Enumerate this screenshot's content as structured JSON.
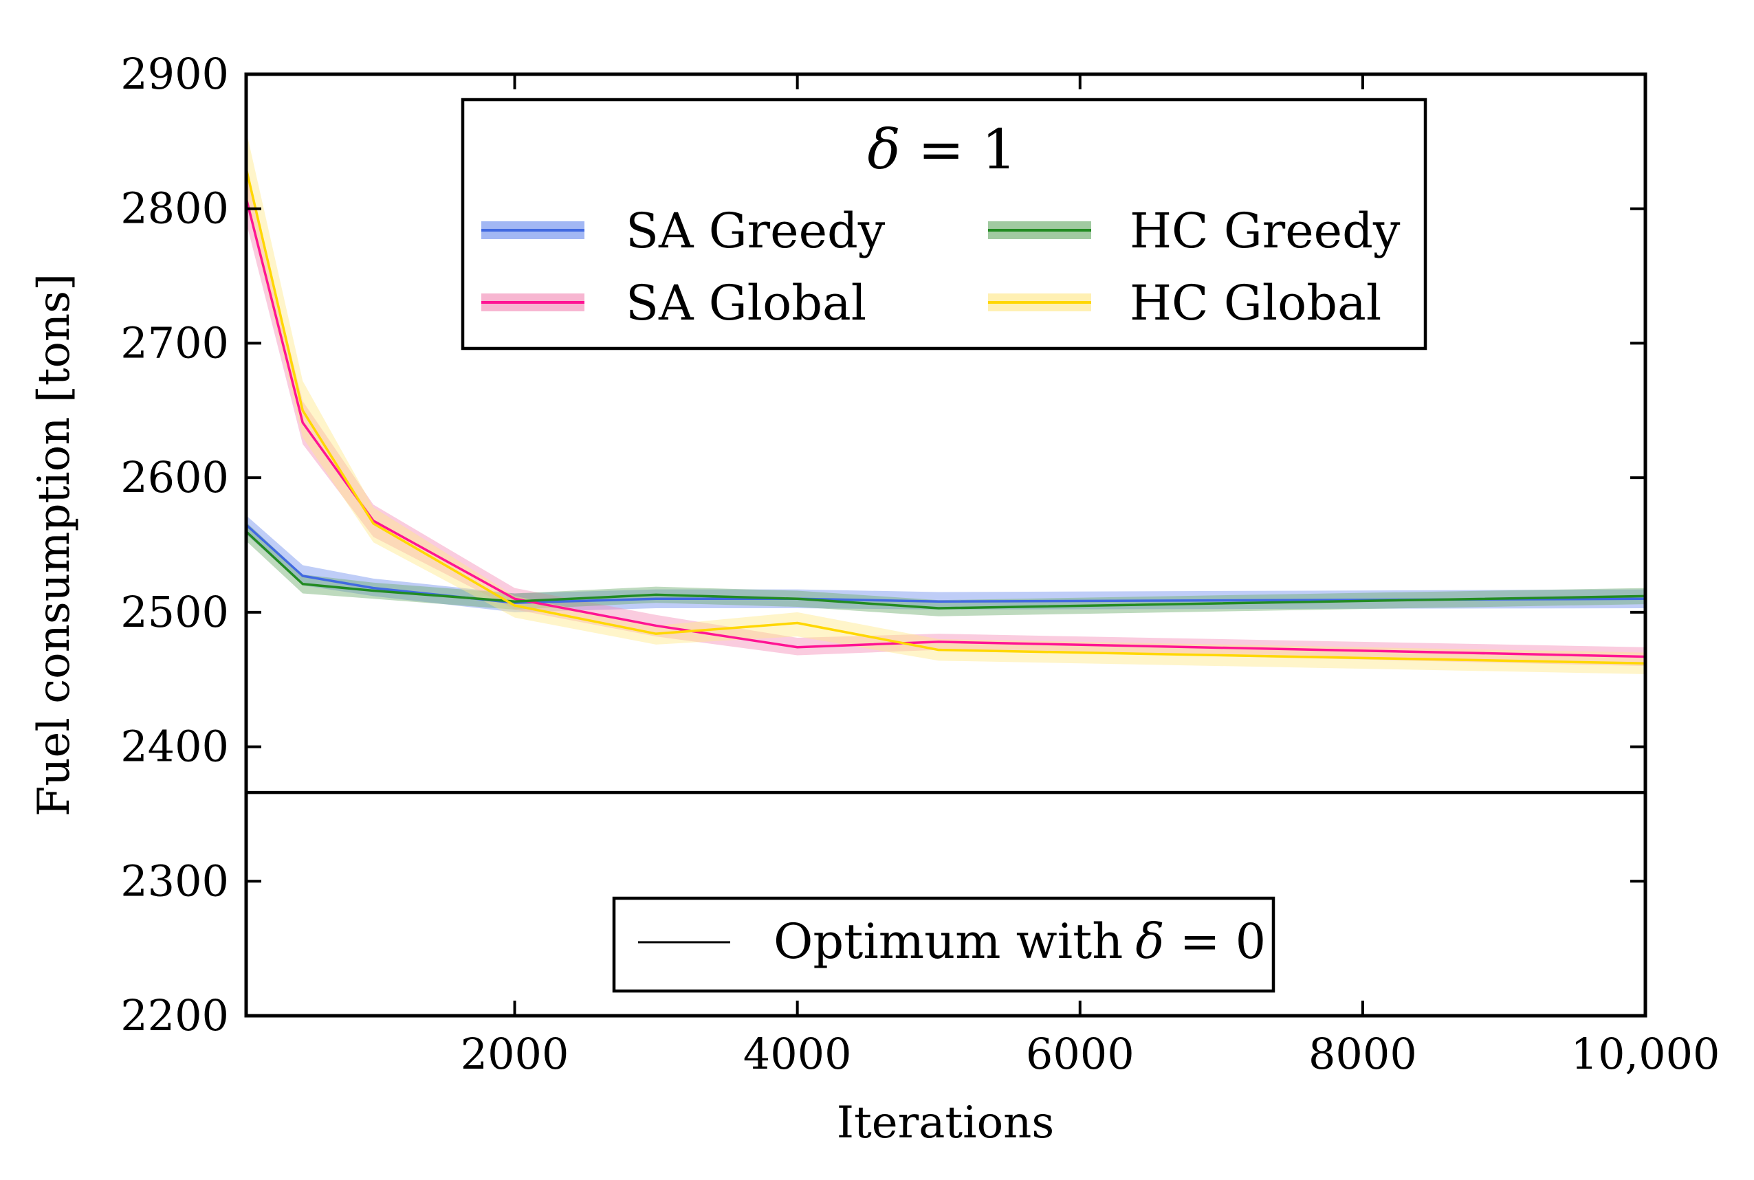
{
  "chart_data": {
    "type": "line",
    "xlabel": "Iterations",
    "ylabel": "Fuel consumption [tons]",
    "xlim": [
      100,
      10000
    ],
    "ylim": [
      2200,
      2900
    ],
    "x_ticks": [
      2000,
      4000,
      6000,
      8000,
      10000
    ],
    "x_tick_labels": [
      "2000",
      "4000",
      "6000",
      "8000",
      "10,000"
    ],
    "y_ticks": [
      2200,
      2300,
      2400,
      2500,
      2600,
      2700,
      2800,
      2900
    ],
    "y_tick_labels": [
      "2200",
      "2300",
      "2400",
      "2500",
      "2600",
      "2700",
      "2800",
      "2900"
    ],
    "legend": {
      "title_symbol": "δ",
      "title_eq": " = ",
      "title_value": "1",
      "placement": "top-center"
    },
    "series": [
      {
        "name": "SA Greedy",
        "color": "#4169e1",
        "band_color": "#7090ee",
        "x": [
          100,
          500,
          1000,
          2000,
          3000,
          4000,
          5000,
          10000
        ],
        "values": [
          2565,
          2527,
          2518,
          2507,
          2510,
          2510,
          2508,
          2510
        ],
        "lower": [
          2558,
          2520,
          2512,
          2500,
          2503,
          2503,
          2502,
          2503
        ],
        "upper": [
          2572,
          2535,
          2525,
          2514,
          2517,
          2517,
          2515,
          2517
        ]
      },
      {
        "name": "SA Global",
        "color": "#ff1493",
        "band_color": "#f38fb8",
        "x": [
          100,
          500,
          1000,
          2000,
          3000,
          4000,
          5000,
          10000
        ],
        "values": [
          2808,
          2641,
          2568,
          2510,
          2490,
          2474,
          2478,
          2467
        ],
        "lower": [
          2790,
          2625,
          2556,
          2502,
          2482,
          2468,
          2472,
          2460
        ],
        "upper": [
          2826,
          2657,
          2580,
          2518,
          2498,
          2481,
          2484,
          2474
        ]
      },
      {
        "name": "HC Greedy",
        "color": "#228b22",
        "band_color": "#6fae6f",
        "x": [
          100,
          500,
          1000,
          2000,
          3000,
          4000,
          5000,
          10000
        ],
        "values": [
          2560,
          2521,
          2516,
          2508,
          2513,
          2510,
          2503,
          2512
        ],
        "lower": [
          2553,
          2514,
          2510,
          2502,
          2507,
          2504,
          2497,
          2506
        ],
        "upper": [
          2567,
          2528,
          2522,
          2514,
          2519,
          2516,
          2509,
          2518
        ]
      },
      {
        "name": "HC Global",
        "color": "#ffd700",
        "band_color": "#ffe88a",
        "x": [
          100,
          500,
          1000,
          2000,
          3000,
          4000,
          5000,
          10000
        ],
        "values": [
          2830,
          2650,
          2566,
          2505,
          2484,
          2492,
          2472,
          2462
        ],
        "lower": [
          2805,
          2630,
          2552,
          2496,
          2476,
          2482,
          2464,
          2454
        ],
        "upper": [
          2858,
          2672,
          2578,
          2512,
          2490,
          2500,
          2480,
          2470
        ]
      }
    ],
    "reference_line": {
      "name": "Optimum with",
      "symbol": "δ",
      "eq": " = ",
      "value_label": "0",
      "y": 2366,
      "color": "#000000",
      "legend_placement": "bottom-center"
    }
  }
}
